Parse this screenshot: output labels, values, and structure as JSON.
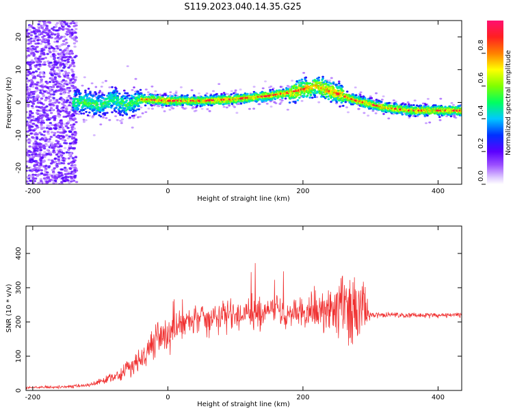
{
  "title": "S119.2023.040.14.35.G25",
  "colors": {
    "snr_line": "#f03030",
    "spectrogram_low": "#6a00ff",
    "spectrogram_high": "#ff1050"
  },
  "chart_data": [
    {
      "type": "heatmap",
      "name": "spectrogram",
      "xlabel": "Height of straight line (km)",
      "ylabel": "Frequency (Hz)",
      "xlim": [
        -210,
        435
      ],
      "ylim": [
        -25,
        25
      ],
      "xticks": [
        -200,
        0,
        200,
        400
      ],
      "yticks": [
        -20,
        -10,
        0,
        10,
        20
      ],
      "grid": false,
      "ridge": {
        "x": [
          -140,
          -120,
          -100,
          -80,
          -60,
          -40,
          0,
          50,
          100,
          150,
          180,
          200,
          220,
          240,
          260,
          280,
          300,
          320,
          340,
          360,
          380,
          400,
          420,
          435
        ],
        "y": [
          0,
          0,
          -1,
          1,
          -1,
          1,
          0.5,
          0.5,
          1,
          2,
          3,
          4,
          5,
          3.5,
          2,
          0.5,
          -0.5,
          -1.5,
          -2,
          -2.5,
          -2.5,
          -2.5,
          -2.5,
          -2.5
        ]
      },
      "colorbar": {
        "label": "Normalized spectral amplitude",
        "range": [
          0,
          1
        ],
        "ticks": [
          0.0,
          0.2,
          0.4,
          0.6,
          0.8
        ],
        "tick_labels": [
          "0.0",
          "0.2",
          "0.4",
          "0.6",
          "0.8"
        ]
      }
    },
    {
      "type": "line",
      "name": "snr",
      "xlabel": "Height of straight line (km)",
      "ylabel": "SNR (10 * v/v)",
      "xlim": [
        -210,
        435
      ],
      "ylim": [
        0,
        480
      ],
      "xticks": [
        -200,
        0,
        200,
        400
      ],
      "yticks": [
        0,
        100,
        200,
        300,
        400
      ],
      "grid": false,
      "envelope": {
        "x": [
          -210,
          -150,
          -120,
          -100,
          -80,
          -60,
          -40,
          -30,
          -20,
          0,
          20,
          50,
          100,
          150,
          200,
          230,
          250,
          270,
          290,
          300,
          310,
          350,
          400,
          435
        ],
        "mean": [
          8,
          10,
          15,
          25,
          40,
          60,
          90,
          120,
          140,
          160,
          200,
          210,
          220,
          225,
          230,
          235,
          240,
          240,
          230,
          220,
          220,
          220,
          220,
          220
        ],
        "amplitude": [
          5,
          5,
          8,
          12,
          20,
          30,
          50,
          60,
          60,
          60,
          55,
          55,
          60,
          60,
          55,
          90,
          130,
          140,
          120,
          12,
          10,
          10,
          10,
          10
        ]
      }
    }
  ]
}
